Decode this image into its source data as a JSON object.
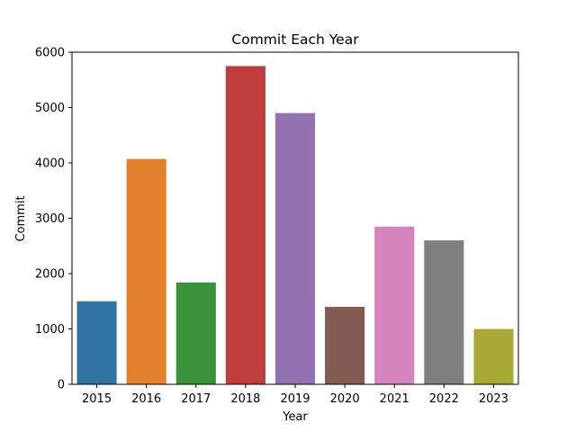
{
  "chart_data": {
    "type": "bar",
    "title": "Commit Each Year",
    "xlabel": "Year",
    "ylabel": "Commit",
    "categories": [
      "2015",
      "2016",
      "2017",
      "2018",
      "2019",
      "2020",
      "2021",
      "2022",
      "2023"
    ],
    "values": [
      1500,
      4070,
      1840,
      5750,
      4900,
      1400,
      2850,
      2600,
      1000
    ],
    "colors": [
      "#3274a1",
      "#e1812c",
      "#3a923a",
      "#c03d3e",
      "#9372b2",
      "#845b53",
      "#d684bd",
      "#7f7f7f",
      "#a9aa35"
    ],
    "ylim": [
      0,
      6000
    ],
    "yticks": [
      0,
      1000,
      2000,
      3000,
      4000,
      5000,
      6000
    ],
    "grid": false,
    "legend": "none"
  }
}
